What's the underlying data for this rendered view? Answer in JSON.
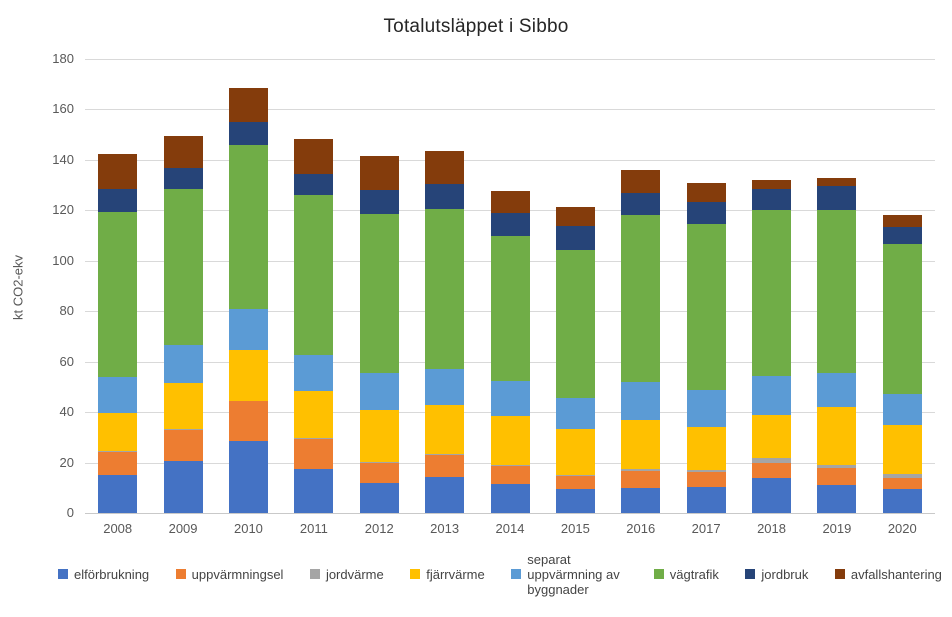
{
  "chart_data": {
    "type": "bar",
    "subtype": "stacked",
    "title": "Totalutsläppet i Sibbo",
    "xlabel": "",
    "ylabel": "kt CO2-ekv",
    "ylim": [
      0,
      180
    ],
    "ytick_step": 20,
    "ytick_labels": [
      "0",
      "20",
      "40",
      "60",
      "80",
      "100",
      "120",
      "140",
      "160",
      "180"
    ],
    "grid": "horizontal",
    "legend_position": "bottom",
    "categories": [
      "2008",
      "2009",
      "2010",
      "2011",
      "2012",
      "2013",
      "2014",
      "2015",
      "2016",
      "2017",
      "2018",
      "2019",
      "2020"
    ],
    "series": [
      {
        "name": "elförbrukning",
        "color": "#4472C4",
        "values": [
          15.0,
          20.5,
          28.5,
          17.6,
          12.0,
          14.2,
          11.4,
          9.7,
          10.0,
          10.5,
          14.0,
          11.3,
          9.7
        ]
      },
      {
        "name": "uppvärmningsel",
        "color": "#ED7D31",
        "values": [
          9.3,
          12.5,
          15.8,
          11.7,
          7.9,
          8.9,
          7.2,
          4.9,
          6.8,
          5.7,
          6.0,
          6.7,
          4.3
        ]
      },
      {
        "name": "jordvärme",
        "color": "#A5A5A5",
        "values": [
          0.3,
          0.3,
          0.3,
          0.3,
          0.3,
          0.4,
          0.5,
          0.4,
          0.6,
          1.0,
          1.8,
          1.0,
          1.5
        ]
      },
      {
        "name": "fjärrvärme",
        "color": "#FFC000",
        "values": [
          15.0,
          18.2,
          19.9,
          18.8,
          20.8,
          19.5,
          19.2,
          18.2,
          19.6,
          16.8,
          17.2,
          23.0,
          19.5
        ]
      },
      {
        "name": "separat uppvärmning av byggnader",
        "color": "#5B9BD5",
        "values": [
          14.4,
          15.0,
          16.5,
          14.1,
          14.5,
          14.0,
          14.1,
          12.3,
          14.8,
          14.6,
          15.4,
          13.5,
          12.0
        ]
      },
      {
        "name": "vägtrafik",
        "color": "#70AD47",
        "values": [
          65.5,
          62.0,
          65.0,
          63.5,
          63.0,
          63.5,
          57.6,
          59.0,
          66.2,
          65.9,
          65.6,
          64.5,
          59.5
        ]
      },
      {
        "name": "jordbruk",
        "color": "#264478",
        "values": [
          9.0,
          8.5,
          9.0,
          8.5,
          9.5,
          10.0,
          9.0,
          9.5,
          9.0,
          9.0,
          8.5,
          9.5,
          7.0
        ]
      },
      {
        "name": "avfallshantering",
        "color": "#843C0C",
        "values": [
          14.0,
          12.5,
          13.5,
          14.0,
          13.5,
          13.0,
          8.5,
          7.5,
          9.0,
          7.5,
          3.5,
          3.5,
          4.5
        ]
      }
    ],
    "totals": [
      142.5,
      149.5,
      168.5,
      148.5,
      141.5,
      143.5,
      127.5,
      121.5,
      136.0,
      131.0,
      132.0,
      133.0,
      118.0
    ]
  }
}
